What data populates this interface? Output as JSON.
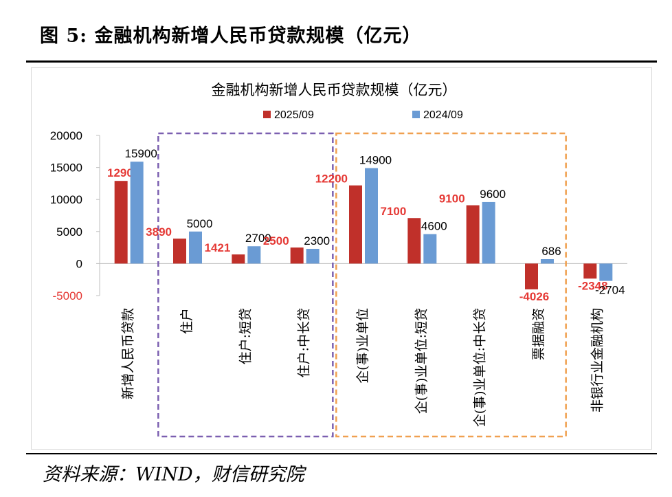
{
  "figure_title": "图 5:  金融机构新增人民币贷款规模（亿元）",
  "source": "资料来源：WIND，财信研究院",
  "colors": {
    "series_2025": "#c0302a",
    "series_2024": "#6a9bd4",
    "label_2025": "#e53935",
    "box_household": "#7b5fb0",
    "box_enterprise": "#f0a050",
    "axis": "#bfbfbf"
  },
  "chart_data": {
    "type": "bar",
    "title": "金融机构新增人民币贷款规模（亿元）",
    "categories": [
      "新增人民币贷款",
      "住户",
      "住户:短贷",
      "住户:中长贷",
      "企(事)业单位",
      "企(事)业单位:短贷",
      "企(事)业单位:中长贷",
      "票据融资",
      "非银行业金融机构"
    ],
    "series": [
      {
        "name": "2025/09",
        "values": [
          12900,
          3890,
          1421,
          2500,
          12200,
          7100,
          9100,
          -4026,
          -2348
        ]
      },
      {
        "name": "2024/09",
        "values": [
          15900,
          5000,
          2700,
          2300,
          14900,
          4600,
          9600,
          686,
          -2704
        ]
      }
    ],
    "ylim": [
      -5000,
      20000
    ],
    "yticks": [
      20000,
      15000,
      10000,
      5000,
      0,
      -5000
    ],
    "xlabel": "",
    "ylabel": "",
    "legend": "top-center"
  }
}
